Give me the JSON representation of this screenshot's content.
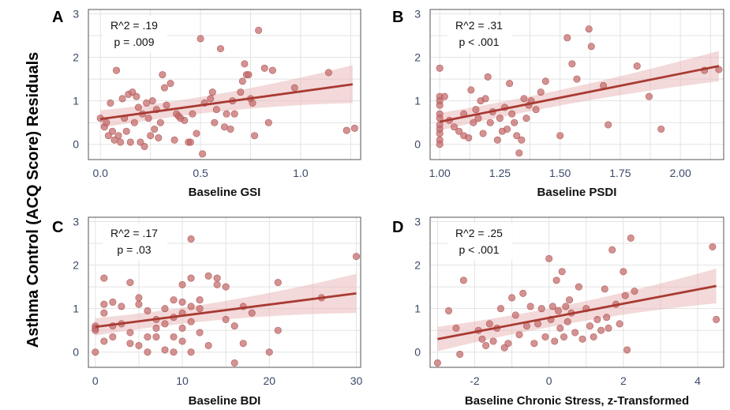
{
  "figure": {
    "ylabel": "Asthma Control (ACQ Score) Residuals"
  },
  "chart_data": [
    {
      "panel": "A",
      "type": "scatter",
      "xlabel": "Baseline GSI",
      "xlim": [
        -0.06,
        1.3
      ],
      "ylim": [
        -0.35,
        3.1
      ],
      "xticks": [
        0.0,
        0.5,
        1.0
      ],
      "xtick_labels": [
        "0.0",
        "0.5",
        "1.0"
      ],
      "yticks": [
        0,
        1,
        2,
        3
      ],
      "ytick_labels": [
        "0",
        "1",
        "2",
        "3"
      ],
      "annotation": [
        "R^2 = .19",
        "p = .009"
      ],
      "fit": {
        "x": [
          0.0,
          1.26
        ],
        "y": [
          0.58,
          1.38
        ],
        "ci_low": [
          0.38,
          0.95
        ],
        "ci_high": [
          0.78,
          1.82
        ]
      },
      "points": [
        [
          0.0,
          0.6
        ],
        [
          0.02,
          0.4
        ],
        [
          0.03,
          0.5
        ],
        [
          0.04,
          0.2
        ],
        [
          0.05,
          0.95
        ],
        [
          0.06,
          0.3
        ],
        [
          0.07,
          0.1
        ],
        [
          0.08,
          1.7
        ],
        [
          0.09,
          0.2
        ],
        [
          0.1,
          0.05
        ],
        [
          0.11,
          1.05
        ],
        [
          0.12,
          0.6
        ],
        [
          0.13,
          0.3
        ],
        [
          0.14,
          1.15
        ],
        [
          0.15,
          0.05
        ],
        [
          0.16,
          1.2
        ],
        [
          0.17,
          0.5
        ],
        [
          0.18,
          1.1
        ],
        [
          0.19,
          0.85
        ],
        [
          0.2,
          0.05
        ],
        [
          0.21,
          0.7
        ],
        [
          0.22,
          -0.05
        ],
        [
          0.23,
          0.95
        ],
        [
          0.24,
          0.6
        ],
        [
          0.25,
          0.2
        ],
        [
          0.26,
          1.0
        ],
        [
          0.27,
          0.35
        ],
        [
          0.28,
          0.8
        ],
        [
          0.29,
          0.15
        ],
        [
          0.3,
          0.5
        ],
        [
          0.31,
          1.6
        ],
        [
          0.32,
          1.3
        ],
        [
          0.33,
          0.9
        ],
        [
          0.35,
          1.4
        ],
        [
          0.37,
          0.1
        ],
        [
          0.38,
          0.7
        ],
        [
          0.39,
          0.65
        ],
        [
          0.4,
          0.6
        ],
        [
          0.42,
          0.55
        ],
        [
          0.44,
          0.05
        ],
        [
          0.45,
          0.05
        ],
        [
          0.46,
          0.7
        ],
        [
          0.48,
          0.25
        ],
        [
          0.5,
          2.43
        ],
        [
          0.51,
          -0.22
        ],
        [
          0.52,
          0.95
        ],
        [
          0.55,
          1.05
        ],
        [
          0.56,
          1.2
        ],
        [
          0.57,
          0.5
        ],
        [
          0.58,
          0.8
        ],
        [
          0.6,
          2.2
        ],
        [
          0.62,
          0.4
        ],
        [
          0.63,
          0.7
        ],
        [
          0.65,
          0.35
        ],
        [
          0.66,
          1.0
        ],
        [
          0.67,
          0.7
        ],
        [
          0.7,
          1.2
        ],
        [
          0.71,
          1.45
        ],
        [
          0.72,
          1.85
        ],
        [
          0.73,
          1.6
        ],
        [
          0.74,
          1.6
        ],
        [
          0.75,
          1.05
        ],
        [
          0.76,
          0.95
        ],
        [
          0.77,
          0.2
        ],
        [
          0.79,
          2.62
        ],
        [
          0.82,
          1.75
        ],
        [
          0.84,
          0.5
        ],
        [
          0.86,
          1.7
        ],
        [
          0.97,
          1.3
        ],
        [
          1.14,
          1.65
        ],
        [
          1.23,
          0.32
        ],
        [
          1.27,
          0.37
        ]
      ]
    },
    {
      "panel": "B",
      "type": "scatter",
      "xlabel": "Baseline PSDI",
      "xlim": [
        0.96,
        2.18
      ],
      "ylim": [
        -0.35,
        3.1
      ],
      "xticks": [
        1.0,
        1.25,
        1.5,
        1.75,
        2.0
      ],
      "xtick_labels": [
        "1.00",
        "1.25",
        "1.50",
        "1.75",
        "2.00"
      ],
      "yticks": [
        0,
        1,
        2,
        3
      ],
      "ytick_labels": [
        "0",
        "1",
        "2",
        "3"
      ],
      "annotation": [
        "R^2 = .31",
        "p < .001"
      ],
      "fit": {
        "x": [
          1.0,
          2.16
        ],
        "y": [
          0.52,
          1.8
        ],
        "ci_low": [
          0.32,
          1.45
        ],
        "ci_high": [
          0.72,
          2.15
        ]
      },
      "points": [
        [
          1.0,
          1.75
        ],
        [
          1.0,
          1.1
        ],
        [
          1.0,
          1.0
        ],
        [
          1.0,
          0.9
        ],
        [
          1.0,
          0.7
        ],
        [
          1.0,
          0.6
        ],
        [
          1.0,
          0.45
        ],
        [
          1.0,
          0.35
        ],
        [
          1.0,
          0.25
        ],
        [
          1.0,
          0.1
        ],
        [
          1.0,
          0.0
        ],
        [
          1.02,
          1.1
        ],
        [
          1.04,
          0.55
        ],
        [
          1.06,
          0.4
        ],
        [
          1.08,
          0.3
        ],
        [
          1.1,
          0.2
        ],
        [
          1.1,
          0.7
        ],
        [
          1.12,
          0.15
        ],
        [
          1.13,
          1.25
        ],
        [
          1.14,
          0.5
        ],
        [
          1.15,
          0.8
        ],
        [
          1.16,
          0.6
        ],
        [
          1.17,
          1.0
        ],
        [
          1.18,
          0.25
        ],
        [
          1.19,
          1.05
        ],
        [
          1.2,
          1.55
        ],
        [
          1.21,
          0.5
        ],
        [
          1.22,
          0.75
        ],
        [
          1.24,
          0.1
        ],
        [
          1.25,
          0.6
        ],
        [
          1.26,
          0.3
        ],
        [
          1.27,
          0.85
        ],
        [
          1.28,
          0.35
        ],
        [
          1.29,
          1.4
        ],
        [
          1.3,
          0.7
        ],
        [
          1.31,
          0.5
        ],
        [
          1.32,
          0.2
        ],
        [
          1.33,
          -0.2
        ],
        [
          1.34,
          0.1
        ],
        [
          1.35,
          1.05
        ],
        [
          1.36,
          0.6
        ],
        [
          1.37,
          0.9
        ],
        [
          1.38,
          1.0
        ],
        [
          1.4,
          0.8
        ],
        [
          1.42,
          1.2
        ],
        [
          1.44,
          1.45
        ],
        [
          1.5,
          0.2
        ],
        [
          1.53,
          2.45
        ],
        [
          1.55,
          1.85
        ],
        [
          1.57,
          1.5
        ],
        [
          1.62,
          2.65
        ],
        [
          1.63,
          2.25
        ],
        [
          1.68,
          1.35
        ],
        [
          1.7,
          0.45
        ],
        [
          1.82,
          1.8
        ],
        [
          1.87,
          1.1
        ],
        [
          1.92,
          0.35
        ],
        [
          2.1,
          1.7
        ],
        [
          2.16,
          1.72
        ]
      ]
    },
    {
      "panel": "C",
      "type": "scatter",
      "xlabel": "Baseline BDI",
      "xlim": [
        -0.8,
        30.5
      ],
      "ylim": [
        -0.35,
        3.1
      ],
      "xticks": [
        0,
        10,
        20,
        30
      ],
      "xtick_labels": [
        "0",
        "10",
        "20",
        "30"
      ],
      "yticks": [
        0,
        1,
        2,
        3
      ],
      "ytick_labels": [
        "0",
        "1",
        "2",
        "3"
      ],
      "annotation": [
        "R^2 = .17",
        "p = .03"
      ],
      "fit": {
        "x": [
          0,
          30
        ],
        "y": [
          0.58,
          1.35
        ],
        "ci_low": [
          0.38,
          0.9
        ],
        "ci_high": [
          0.78,
          1.8
        ]
      },
      "points": [
        [
          0,
          0.6
        ],
        [
          0,
          0.5
        ],
        [
          0,
          0.55
        ],
        [
          0,
          0.0
        ],
        [
          1,
          0.25
        ],
        [
          1,
          1.1
        ],
        [
          1,
          0.9
        ],
        [
          1,
          1.7
        ],
        [
          2,
          0.6
        ],
        [
          2,
          0.35
        ],
        [
          2,
          1.15
        ],
        [
          3,
          0.65
        ],
        [
          3,
          1.05
        ],
        [
          4,
          0.45
        ],
        [
          4,
          0.2
        ],
        [
          4,
          1.6
        ],
        [
          5,
          1.25
        ],
        [
          5,
          0.15
        ],
        [
          5,
          1.1
        ],
        [
          6,
          0.95
        ],
        [
          6,
          0.35
        ],
        [
          6,
          0.0
        ],
        [
          7,
          0.55
        ],
        [
          7,
          0.35
        ],
        [
          7,
          0.75
        ],
        [
          8,
          0.05
        ],
        [
          8,
          1.0
        ],
        [
          8,
          0.65
        ],
        [
          9,
          0.8
        ],
        [
          9,
          1.2
        ],
        [
          9,
          0.35
        ],
        [
          9,
          0.0
        ],
        [
          10,
          1.15
        ],
        [
          10,
          0.55
        ],
        [
          10,
          0.25
        ],
        [
          10,
          1.55
        ],
        [
          10,
          0.9
        ],
        [
          11,
          0.7
        ],
        [
          11,
          1.05
        ],
        [
          11,
          2.6
        ],
        [
          11,
          0.0
        ],
        [
          11,
          1.7
        ],
        [
          12,
          1.0
        ],
        [
          12,
          0.45
        ],
        [
          12,
          1.2
        ],
        [
          13,
          1.75
        ],
        [
          13,
          0.15
        ],
        [
          14,
          1.55
        ],
        [
          14,
          1.7
        ],
        [
          15,
          1.5
        ],
        [
          15,
          0.75
        ],
        [
          16,
          -0.25
        ],
        [
          16,
          0.6
        ],
        [
          17,
          0.2
        ],
        [
          17,
          1.05
        ],
        [
          18,
          0.9
        ],
        [
          20,
          0.0
        ],
        [
          21,
          0.5
        ],
        [
          21,
          1.6
        ],
        [
          26,
          1.25
        ],
        [
          30,
          2.2
        ]
      ]
    },
    {
      "panel": "D",
      "type": "scatter",
      "xlabel": "Baseline Chronic Stress, z-Transformed",
      "xlim": [
        -3.2,
        4.7
      ],
      "ylim": [
        -0.35,
        3.1
      ],
      "xticks": [
        -2,
        0,
        2,
        4
      ],
      "xtick_labels": [
        "-2",
        "0",
        "2",
        "4"
      ],
      "yticks": [
        0,
        1,
        2,
        3
      ],
      "ytick_labels": [
        "0",
        "1",
        "2",
        "3"
      ],
      "annotation": [
        "R^2 = .25",
        "p < .001"
      ],
      "fit": {
        "x": [
          -3.0,
          4.5
        ],
        "y": [
          0.3,
          1.52
        ],
        "ci_low": [
          0.02,
          1.12
        ],
        "ci_high": [
          0.58,
          1.92
        ]
      },
      "points": [
        [
          -3.0,
          -0.25
        ],
        [
          -2.7,
          0.95
        ],
        [
          -2.5,
          0.55
        ],
        [
          -2.4,
          -0.05
        ],
        [
          -2.3,
          1.65
        ],
        [
          -1.9,
          0.5
        ],
        [
          -1.8,
          0.3
        ],
        [
          -1.7,
          0.15
        ],
        [
          -1.6,
          0.65
        ],
        [
          -1.5,
          0.25
        ],
        [
          -1.4,
          0.55
        ],
        [
          -1.3,
          1.0
        ],
        [
          -1.2,
          0.1
        ],
        [
          -1.1,
          0.2
        ],
        [
          -1.0,
          1.25
        ],
        [
          -0.9,
          0.85
        ],
        [
          -0.8,
          0.4
        ],
        [
          -0.7,
          1.35
        ],
        [
          -0.6,
          0.6
        ],
        [
          -0.5,
          1.05
        ],
        [
          -0.4,
          0.2
        ],
        [
          -0.3,
          0.65
        ],
        [
          -0.2,
          1.0
        ],
        [
          -0.1,
          0.35
        ],
        [
          0.0,
          2.15
        ],
        [
          0.05,
          0.75
        ],
        [
          0.1,
          1.05
        ],
        [
          0.15,
          0.25
        ],
        [
          0.2,
          1.65
        ],
        [
          0.25,
          0.95
        ],
        [
          0.3,
          0.55
        ],
        [
          0.35,
          1.85
        ],
        [
          0.4,
          0.35
        ],
        [
          0.45,
          1.05
        ],
        [
          0.5,
          0.7
        ],
        [
          0.55,
          1.2
        ],
        [
          0.6,
          0.9
        ],
        [
          0.7,
          0.45
        ],
        [
          0.8,
          1.5
        ],
        [
          0.9,
          0.3
        ],
        [
          1.0,
          1.0
        ],
        [
          1.1,
          0.6
        ],
        [
          1.2,
          0.35
        ],
        [
          1.3,
          0.75
        ],
        [
          1.4,
          0.5
        ],
        [
          1.5,
          1.45
        ],
        [
          1.55,
          0.8
        ],
        [
          1.6,
          0.55
        ],
        [
          1.7,
          2.35
        ],
        [
          1.8,
          1.1
        ],
        [
          1.9,
          0.65
        ],
        [
          2.0,
          1.85
        ],
        [
          2.05,
          1.3
        ],
        [
          2.1,
          0.05
        ],
        [
          2.2,
          2.62
        ],
        [
          2.3,
          1.4
        ],
        [
          4.4,
          2.42
        ],
        [
          4.5,
          0.75
        ]
      ]
    }
  ]
}
